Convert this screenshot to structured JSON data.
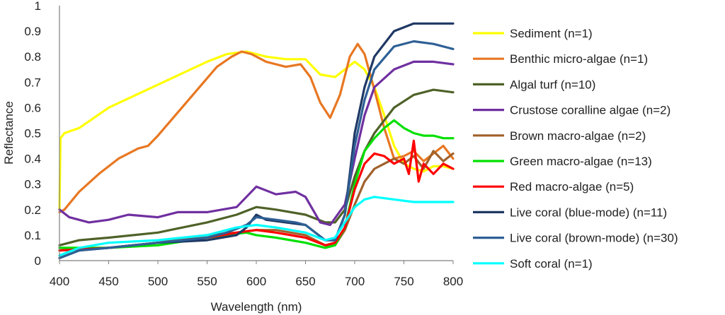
{
  "chart_data": {
    "type": "line",
    "title": "",
    "xlabel": "Wavelength (nm)",
    "ylabel": "Reflectance",
    "xlim": [
      400,
      800
    ],
    "ylim": [
      0,
      1
    ],
    "xticks": [
      400,
      450,
      500,
      550,
      600,
      650,
      700,
      750,
      800
    ],
    "xtick_labels": [
      "400",
      "450",
      "500",
      "550",
      "600",
      "650",
      "700",
      "750",
      "800"
    ],
    "yticks": [
      0,
      0.1,
      0.2,
      0.3,
      0.4,
      0.5,
      0.6,
      0.7,
      0.8,
      0.9,
      1
    ],
    "ytick_labels": [
      "0",
      "0.1",
      "0.2",
      "0.3",
      "0.4",
      "0.5",
      "0.6",
      "0.7",
      "0.8",
      "0.9",
      "1"
    ],
    "grid": false,
    "legend_position": "right",
    "series": [
      {
        "name": "Sediment (n=1)",
        "color": "#FFFF00",
        "points": [
          [
            400,
            0.2
          ],
          [
            401,
            0.48
          ],
          [
            405,
            0.5
          ],
          [
            420,
            0.52
          ],
          [
            450,
            0.6
          ],
          [
            500,
            0.69
          ],
          [
            550,
            0.78
          ],
          [
            570,
            0.81
          ],
          [
            590,
            0.82
          ],
          [
            610,
            0.8
          ],
          [
            630,
            0.79
          ],
          [
            650,
            0.79
          ],
          [
            665,
            0.73
          ],
          [
            680,
            0.72
          ],
          [
            690,
            0.75
          ],
          [
            700,
            0.78
          ],
          [
            710,
            0.75
          ],
          [
            720,
            0.68
          ],
          [
            730,
            0.57
          ],
          [
            740,
            0.45
          ],
          [
            750,
            0.38
          ],
          [
            760,
            0.36
          ],
          [
            770,
            0.35
          ],
          [
            780,
            0.37
          ],
          [
            790,
            0.37
          ],
          [
            800,
            0.36
          ]
        ]
      },
      {
        "name": "Benthic micro-algae (n=1)",
        "color": "#E87722",
        "points": [
          [
            400,
            0.19
          ],
          [
            405,
            0.2
          ],
          [
            420,
            0.27
          ],
          [
            440,
            0.34
          ],
          [
            460,
            0.4
          ],
          [
            480,
            0.44
          ],
          [
            490,
            0.45
          ],
          [
            500,
            0.49
          ],
          [
            520,
            0.58
          ],
          [
            540,
            0.67
          ],
          [
            560,
            0.76
          ],
          [
            575,
            0.8
          ],
          [
            585,
            0.82
          ],
          [
            595,
            0.81
          ],
          [
            610,
            0.78
          ],
          [
            630,
            0.76
          ],
          [
            645,
            0.77
          ],
          [
            655,
            0.72
          ],
          [
            665,
            0.62
          ],
          [
            675,
            0.56
          ],
          [
            685,
            0.65
          ],
          [
            695,
            0.8
          ],
          [
            703,
            0.85
          ],
          [
            710,
            0.81
          ],
          [
            720,
            0.67
          ],
          [
            730,
            0.52
          ],
          [
            740,
            0.4
          ],
          [
            750,
            0.41
          ],
          [
            760,
            0.43
          ],
          [
            770,
            0.39
          ],
          [
            780,
            0.42
          ],
          [
            790,
            0.45
          ],
          [
            800,
            0.4
          ]
        ]
      },
      {
        "name": "Algal turf (n=10)",
        "color": "#4F6228",
        "points": [
          [
            400,
            0.06
          ],
          [
            420,
            0.08
          ],
          [
            450,
            0.09
          ],
          [
            500,
            0.11
          ],
          [
            550,
            0.15
          ],
          [
            580,
            0.18
          ],
          [
            600,
            0.21
          ],
          [
            620,
            0.2
          ],
          [
            650,
            0.18
          ],
          [
            670,
            0.15
          ],
          [
            680,
            0.15
          ],
          [
            690,
            0.2
          ],
          [
            700,
            0.33
          ],
          [
            710,
            0.43
          ],
          [
            720,
            0.5
          ],
          [
            740,
            0.6
          ],
          [
            760,
            0.65
          ],
          [
            780,
            0.67
          ],
          [
            800,
            0.66
          ]
        ]
      },
      {
        "name": "Crustose coralline algae (n=2)",
        "color": "#7030A0",
        "points": [
          [
            400,
            0.2
          ],
          [
            410,
            0.17
          ],
          [
            430,
            0.15
          ],
          [
            450,
            0.16
          ],
          [
            470,
            0.18
          ],
          [
            500,
            0.17
          ],
          [
            520,
            0.19
          ],
          [
            550,
            0.19
          ],
          [
            580,
            0.21
          ],
          [
            600,
            0.29
          ],
          [
            620,
            0.26
          ],
          [
            640,
            0.27
          ],
          [
            650,
            0.25
          ],
          [
            665,
            0.15
          ],
          [
            675,
            0.14
          ],
          [
            690,
            0.22
          ],
          [
            700,
            0.4
          ],
          [
            710,
            0.57
          ],
          [
            720,
            0.68
          ],
          [
            740,
            0.75
          ],
          [
            760,
            0.78
          ],
          [
            780,
            0.78
          ],
          [
            800,
            0.77
          ]
        ]
      },
      {
        "name": "Brown macro-algae (n=2)",
        "color": "#A0612B",
        "points": [
          [
            400,
            0.04
          ],
          [
            450,
            0.05
          ],
          [
            500,
            0.07
          ],
          [
            550,
            0.1
          ],
          [
            580,
            0.11
          ],
          [
            600,
            0.12
          ],
          [
            620,
            0.12
          ],
          [
            650,
            0.1
          ],
          [
            670,
            0.06
          ],
          [
            680,
            0.06
          ],
          [
            690,
            0.12
          ],
          [
            700,
            0.22
          ],
          [
            710,
            0.31
          ],
          [
            720,
            0.36
          ],
          [
            730,
            0.38
          ],
          [
            740,
            0.4
          ],
          [
            750,
            0.38
          ],
          [
            760,
            0.41
          ],
          [
            770,
            0.36
          ],
          [
            780,
            0.43
          ],
          [
            790,
            0.39
          ],
          [
            800,
            0.42
          ]
        ]
      },
      {
        "name": "Green macro-algae (n=13)",
        "color": "#00E000",
        "points": [
          [
            400,
            0.05
          ],
          [
            450,
            0.05
          ],
          [
            500,
            0.06
          ],
          [
            550,
            0.09
          ],
          [
            570,
            0.1
          ],
          [
            590,
            0.11
          ],
          [
            600,
            0.1
          ],
          [
            620,
            0.09
          ],
          [
            650,
            0.07
          ],
          [
            670,
            0.05
          ],
          [
            680,
            0.06
          ],
          [
            690,
            0.13
          ],
          [
            700,
            0.3
          ],
          [
            710,
            0.43
          ],
          [
            720,
            0.48
          ],
          [
            730,
            0.52
          ],
          [
            740,
            0.55
          ],
          [
            750,
            0.52
          ],
          [
            760,
            0.5
          ],
          [
            770,
            0.49
          ],
          [
            780,
            0.49
          ],
          [
            790,
            0.48
          ],
          [
            800,
            0.48
          ]
        ]
      },
      {
        "name": "Red macro-algae (n=5)",
        "color": "#FF0000",
        "points": [
          [
            400,
            0.04
          ],
          [
            450,
            0.05
          ],
          [
            500,
            0.07
          ],
          [
            550,
            0.09
          ],
          [
            580,
            0.11
          ],
          [
            600,
            0.12
          ],
          [
            620,
            0.11
          ],
          [
            650,
            0.09
          ],
          [
            670,
            0.06
          ],
          [
            680,
            0.07
          ],
          [
            690,
            0.13
          ],
          [
            700,
            0.28
          ],
          [
            710,
            0.38
          ],
          [
            720,
            0.42
          ],
          [
            730,
            0.41
          ],
          [
            740,
            0.38
          ],
          [
            750,
            0.4
          ],
          [
            755,
            0.34
          ],
          [
            760,
            0.47
          ],
          [
            765,
            0.31
          ],
          [
            770,
            0.38
          ],
          [
            780,
            0.34
          ],
          [
            790,
            0.38
          ],
          [
            800,
            0.36
          ]
        ]
      },
      {
        "name": "Live coral (blue-mode) (n=11)",
        "color": "#1F3864",
        "points": [
          [
            400,
            0.01
          ],
          [
            420,
            0.04
          ],
          [
            450,
            0.05
          ],
          [
            500,
            0.07
          ],
          [
            550,
            0.08
          ],
          [
            580,
            0.1
          ],
          [
            590,
            0.13
          ],
          [
            600,
            0.18
          ],
          [
            610,
            0.16
          ],
          [
            630,
            0.15
          ],
          [
            650,
            0.14
          ],
          [
            670,
            0.08
          ],
          [
            680,
            0.08
          ],
          [
            690,
            0.18
          ],
          [
            700,
            0.5
          ],
          [
            710,
            0.68
          ],
          [
            720,
            0.8
          ],
          [
            740,
            0.9
          ],
          [
            760,
            0.93
          ],
          [
            780,
            0.93
          ],
          [
            800,
            0.93
          ]
        ]
      },
      {
        "name": "Live coral (brown-mode) (n=30)",
        "color": "#2E6095",
        "points": [
          [
            400,
            0.01
          ],
          [
            420,
            0.04
          ],
          [
            450,
            0.05
          ],
          [
            500,
            0.07
          ],
          [
            550,
            0.09
          ],
          [
            570,
            0.11
          ],
          [
            590,
            0.14
          ],
          [
            600,
            0.17
          ],
          [
            620,
            0.16
          ],
          [
            640,
            0.15
          ],
          [
            650,
            0.14
          ],
          [
            670,
            0.08
          ],
          [
            680,
            0.08
          ],
          [
            690,
            0.18
          ],
          [
            700,
            0.45
          ],
          [
            710,
            0.63
          ],
          [
            720,
            0.75
          ],
          [
            740,
            0.84
          ],
          [
            760,
            0.86
          ],
          [
            780,
            0.85
          ],
          [
            800,
            0.83
          ]
        ]
      },
      {
        "name": "Soft coral (n=1)",
        "color": "#00FFFF",
        "points": [
          [
            400,
            0.02
          ],
          [
            420,
            0.05
          ],
          [
            450,
            0.07
          ],
          [
            500,
            0.08
          ],
          [
            550,
            0.1
          ],
          [
            580,
            0.13
          ],
          [
            600,
            0.14
          ],
          [
            620,
            0.13
          ],
          [
            650,
            0.11
          ],
          [
            670,
            0.08
          ],
          [
            680,
            0.09
          ],
          [
            690,
            0.15
          ],
          [
            700,
            0.21
          ],
          [
            710,
            0.24
          ],
          [
            720,
            0.25
          ],
          [
            740,
            0.24
          ],
          [
            760,
            0.23
          ],
          [
            780,
            0.23
          ],
          [
            800,
            0.23
          ]
        ]
      }
    ]
  }
}
